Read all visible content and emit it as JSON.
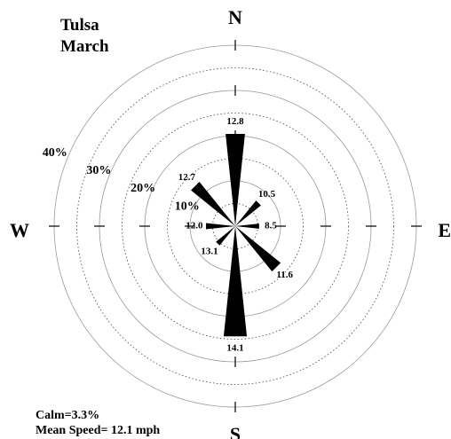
{
  "chart_data": {
    "type": "windrose",
    "title": "Tulsa",
    "subtitle": "March",
    "directions": [
      "N",
      "NE",
      "E",
      "SE",
      "S",
      "SW",
      "W",
      "NW"
    ],
    "values": [
      20.5,
      7.3,
      5.3,
      12.9,
      24.5,
      5.5,
      6.5,
      12.6
    ],
    "speeds": [
      12.8,
      10.5,
      8.5,
      11.6,
      14.1,
      13.1,
      12.0,
      12.7
    ],
    "speed_labels": [
      "12.8",
      "10.5",
      "8.5",
      "11.6",
      "14.1",
      "13.1",
      "12.0",
      "12.7"
    ],
    "color": "#000000",
    "rlim": [
      0,
      40
    ],
    "rticks": [
      {
        "value": 10,
        "label": "10%"
      },
      {
        "value": 20,
        "label": "20%"
      },
      {
        "value": 30,
        "label": "30%"
      },
      {
        "value": 40,
        "label": "40%"
      }
    ],
    "rminor": [
      5,
      15,
      25,
      35
    ],
    "compass": [
      "N",
      "E",
      "S",
      "W"
    ],
    "calm": "Calm=3.3%",
    "mean_speed": "Mean Speed= 12.1 mph"
  }
}
